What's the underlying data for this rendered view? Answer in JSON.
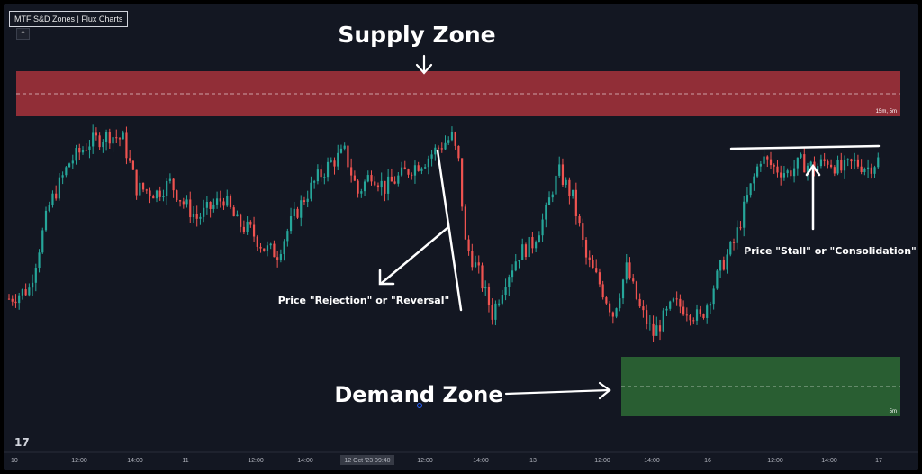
{
  "indicator": {
    "label": "MTF S&D Zones | Flux Charts",
    "collapse_glyph": "^"
  },
  "logo": {
    "text": "17"
  },
  "annotations": {
    "supply_title": "Supply Zone",
    "demand_title": "Demand Zone",
    "rejection_note": "Price \"Rejection\" or \"Reversal\"",
    "stall_note": "Price \"Stall\" or \"Consolidation\"",
    "supply_tf": "15m, 5m",
    "demand_tf": "5m"
  },
  "colors": {
    "background": "#131722",
    "up_candle": "#26a69a",
    "down_candle": "#ef5350",
    "supply_zone": "#a8333b",
    "demand_zone": "#2e6b35",
    "annotation": "#ffffff"
  },
  "chart_data": {
    "type": "candlestick",
    "title": "",
    "xlabel": "",
    "ylabel": "",
    "x_ticks": [
      "10",
      "12:00",
      "14:00",
      "11",
      "12:00",
      "14:00",
      "12 Oct '23  09:40",
      "12:00",
      "14:00",
      "13",
      "12:00",
      "14:00",
      "16",
      "12:00",
      "14:00",
      "17"
    ],
    "highlighted_tick": "12 Oct '23  09:40",
    "price_path": [
      [
        0,
        0.18
      ],
      [
        3,
        0.22
      ],
      [
        6,
        0.55
      ],
      [
        9,
        0.72
      ],
      [
        12,
        0.8
      ],
      [
        15,
        0.83
      ],
      [
        17,
        0.81
      ],
      [
        19,
        0.62
      ],
      [
        22,
        0.6
      ],
      [
        24,
        0.64
      ],
      [
        26,
        0.56
      ],
      [
        28,
        0.5
      ],
      [
        30,
        0.54
      ],
      [
        32,
        0.58
      ],
      [
        34,
        0.48
      ],
      [
        36,
        0.45
      ],
      [
        38,
        0.38
      ],
      [
        40,
        0.36
      ],
      [
        42,
        0.48
      ],
      [
        44,
        0.58
      ],
      [
        46,
        0.66
      ],
      [
        48,
        0.72
      ],
      [
        50,
        0.76
      ],
      [
        52,
        0.6
      ],
      [
        54,
        0.68
      ],
      [
        56,
        0.62
      ],
      [
        58,
        0.66
      ],
      [
        60,
        0.7
      ],
      [
        62,
        0.73
      ],
      [
        64,
        0.78
      ],
      [
        66,
        0.82
      ],
      [
        67,
        0.72
      ],
      [
        68,
        0.4
      ],
      [
        70,
        0.28
      ],
      [
        72,
        0.12
      ],
      [
        74,
        0.26
      ],
      [
        76,
        0.36
      ],
      [
        78,
        0.4
      ],
      [
        80,
        0.52
      ],
      [
        81,
        0.62
      ],
      [
        82,
        0.68
      ],
      [
        84,
        0.58
      ],
      [
        86,
        0.34
      ],
      [
        88,
        0.24
      ],
      [
        90,
        0.12
      ],
      [
        92,
        0.3
      ],
      [
        94,
        0.14
      ],
      [
        96,
        0.04
      ],
      [
        97,
        0.08
      ],
      [
        99,
        0.16
      ],
      [
        101,
        0.14
      ],
      [
        103,
        0.1
      ],
      [
        104,
        0.16
      ],
      [
        106,
        0.3
      ],
      [
        108,
        0.4
      ],
      [
        110,
        0.58
      ],
      [
        112,
        0.74
      ],
      [
        114,
        0.7
      ],
      [
        116,
        0.68
      ],
      [
        118,
        0.72
      ],
      [
        120,
        0.7
      ],
      [
        122,
        0.73
      ],
      [
        124,
        0.69
      ],
      [
        126,
        0.72
      ],
      [
        128,
        0.7
      ],
      [
        130,
        0.74
      ]
    ],
    "zones": [
      {
        "name": "Supply Zone",
        "y_top": 1.0,
        "y_bottom": 0.83,
        "timeframes": "15m, 5m"
      },
      {
        "name": "Demand Zone",
        "y_top": 0.04,
        "y_bottom": -0.19,
        "timeframes": "5m"
      }
    ]
  }
}
